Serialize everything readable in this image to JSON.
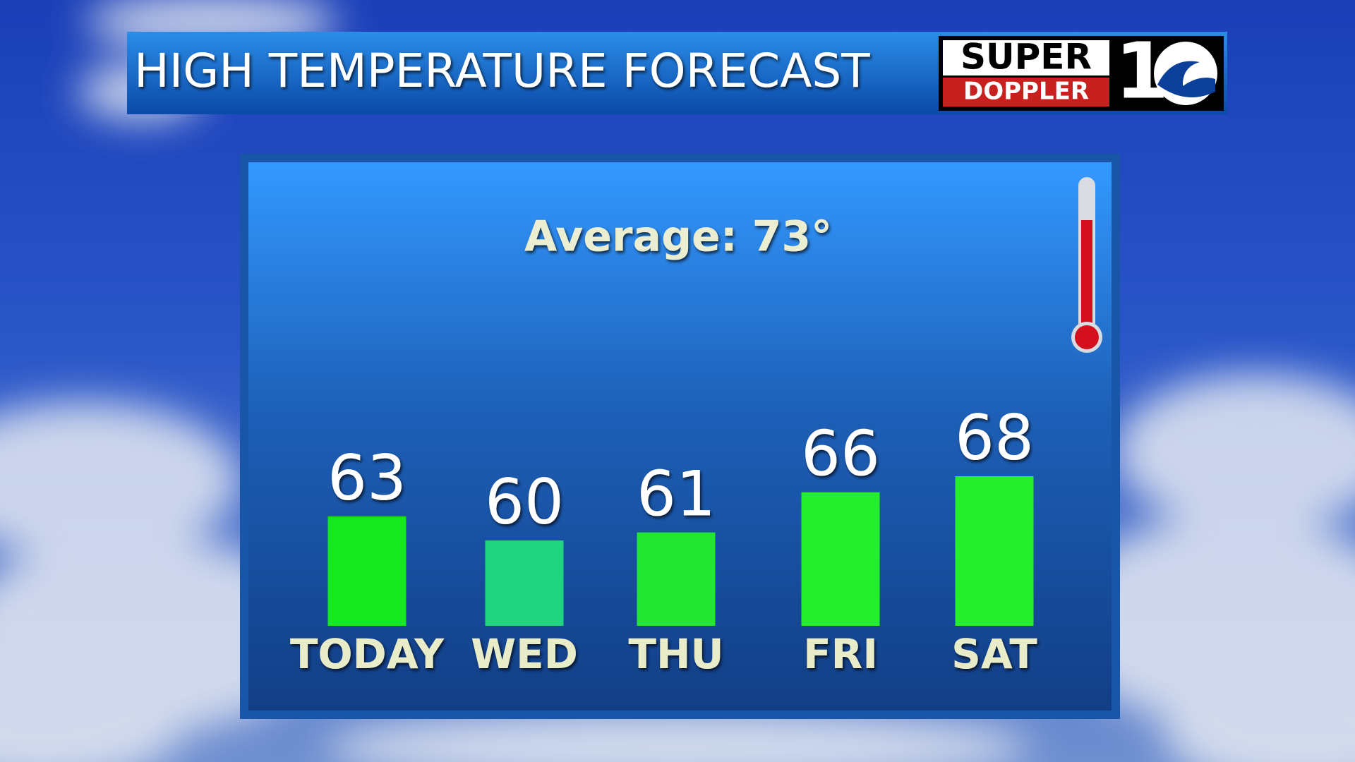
{
  "chart_data": {
    "type": "bar",
    "title": "HIGH TEMPERATURE FORECAST",
    "logo": {
      "top": "SUPER",
      "bottom": "DOPPLER",
      "number": "1"
    },
    "annotation": "Average: 73°",
    "categories": [
      "TODAY",
      "WED",
      "THU",
      "FRI",
      "SAT"
    ],
    "values": [
      63,
      60,
      61,
      66,
      68
    ],
    "colors": [
      "#14e81e",
      "#20d480",
      "#22e630",
      "#25ee2a",
      "#25ee2a"
    ]
  }
}
